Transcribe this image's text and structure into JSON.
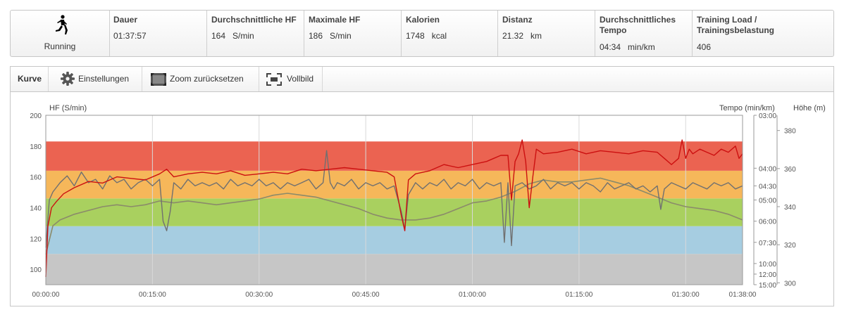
{
  "summary": {
    "sport": {
      "label": "Running",
      "icon": "runner-icon"
    },
    "cells": [
      {
        "title": "Dauer",
        "value": "01:37:57",
        "unit": ""
      },
      {
        "title": "Durchschnittliche HF",
        "value": "164",
        "unit": "S/min"
      },
      {
        "title": "Maximale HF",
        "value": "186",
        "unit": "S/min"
      },
      {
        "title": "Kalorien",
        "value": "1748",
        "unit": "kcal"
      },
      {
        "title": "Distanz",
        "value": "21.32",
        "unit": "km"
      },
      {
        "title": "Durchschnittliches Tempo",
        "value": "04:34",
        "unit": "min/km"
      },
      {
        "title": "Training Load / Trainingsbelastung",
        "value": "406",
        "unit": ""
      }
    ]
  },
  "toolbar": {
    "curve_label": "Kurve",
    "settings_label": "Einstellungen",
    "zoom_reset_label": "Zoom zurücksetzen",
    "fullscreen_label": "Vollbild"
  },
  "chart_data": {
    "type": "line",
    "y_left_title": "HF (S/min)",
    "y_right1_title": "Tempo (min/km)",
    "y_right2_title": "Höhe (m)",
    "x_ticks": [
      "00:00:00",
      "00:15:00",
      "00:30:00",
      "00:45:00",
      "01:00:00",
      "01:15:00",
      "01:30:00",
      "01:38:00"
    ],
    "x_range_minutes": [
      0,
      98
    ],
    "y_left_ticks": [
      100,
      120,
      140,
      160,
      180,
      200
    ],
    "y_left_range": [
      90,
      200
    ],
    "pace_ticks": [
      "03:00",
      "04:00",
      "04:30",
      "05:00",
      "06:00",
      "07:30",
      "10:00",
      "12:00",
      "15:00"
    ],
    "altitude_ticks": [
      300,
      320,
      340,
      360,
      380
    ],
    "altitude_range": [
      299,
      388
    ],
    "zones": [
      {
        "from": 90,
        "to": 110,
        "color": "#c6c6c6"
      },
      {
        "from": 110,
        "to": 128,
        "color": "#a6cde1"
      },
      {
        "from": 128,
        "to": 146,
        "color": "#a9d05f"
      },
      {
        "from": 146,
        "to": 164,
        "color": "#f6b75a"
      },
      {
        "from": 164,
        "to": 183,
        "color": "#eb6351"
      }
    ],
    "series": [
      {
        "name": "HF",
        "color": "#cc1010",
        "unit": "bpm",
        "x": [
          0,
          0.3,
          0.8,
          1.5,
          2.5,
          4,
          6,
          8,
          10,
          12,
          14,
          16,
          17,
          18,
          20,
          22,
          24,
          26,
          28,
          30,
          32,
          34,
          36,
          38,
          40,
          42,
          44,
          46,
          48,
          49,
          50,
          50.5,
          51,
          52,
          54,
          56,
          58,
          60,
          62,
          63,
          64,
          65,
          65.5,
          66,
          66.5,
          67,
          67.5,
          68,
          68.5,
          69,
          70,
          72,
          74,
          76,
          78,
          80,
          82,
          84,
          86,
          87,
          88,
          89,
          89.5,
          90,
          90.5,
          91,
          92,
          93,
          94,
          95,
          96,
          97,
          97.5,
          98
        ],
        "values": [
          95,
          128,
          140,
          144,
          149,
          153,
          157,
          156,
          160,
          159,
          158,
          162,
          165,
          160,
          162,
          163,
          162,
          164,
          161,
          162,
          163,
          162,
          165,
          164,
          165,
          166,
          165,
          164,
          163,
          160,
          135,
          125,
          158,
          162,
          164,
          168,
          166,
          168,
          170,
          172,
          174,
          174,
          145,
          170,
          175,
          184,
          170,
          140,
          160,
          178,
          175,
          176,
          178,
          175,
          177,
          176,
          175,
          177,
          176,
          172,
          168,
          172,
          184,
          172,
          178,
          175,
          178,
          176,
          174,
          178,
          176,
          180,
          172,
          175
        ]
      },
      {
        "name": "Tempo",
        "color": "#707070",
        "unit": "min/km",
        "x": [
          0,
          0.5,
          1,
          2,
          3,
          4,
          5,
          6,
          7,
          8,
          9,
          10,
          11,
          12,
          13,
          14,
          15,
          16,
          16.5,
          17,
          17.5,
          18,
          19,
          20,
          21,
          22,
          23,
          24,
          25,
          26,
          27,
          28,
          29,
          30,
          31,
          32,
          33,
          34,
          35,
          36,
          37,
          38,
          39,
          39.5,
          40,
          40.5,
          41,
          42,
          43,
          44,
          45,
          46,
          47,
          48,
          49,
          50,
          50.5,
          51,
          52,
          53,
          54,
          55,
          56,
          57,
          58,
          59,
          60,
          61,
          62,
          63,
          64,
          64.5,
          65,
          65.5,
          66,
          67,
          68,
          69,
          70,
          71,
          72,
          73,
          74,
          75,
          76,
          77,
          78,
          79,
          80,
          81,
          82,
          83,
          84,
          85,
          86,
          86.5,
          87,
          88,
          89,
          90,
          91,
          92,
          93,
          94,
          95,
          96,
          97,
          98
        ],
        "values": [
          8.0,
          5.0,
          4.7,
          4.4,
          4.2,
          4.5,
          4.1,
          4.4,
          4.3,
          4.6,
          4.2,
          4.4,
          4.3,
          4.6,
          4.4,
          4.3,
          4.5,
          4.3,
          6.0,
          6.6,
          5.5,
          4.4,
          4.6,
          4.3,
          4.5,
          4.4,
          4.5,
          4.4,
          4.6,
          4.3,
          4.5,
          4.4,
          4.5,
          4.3,
          4.5,
          4.4,
          4.6,
          4.4,
          4.5,
          4.4,
          4.3,
          4.6,
          4.4,
          3.6,
          4.4,
          4.6,
          4.4,
          4.5,
          4.3,
          4.6,
          4.4,
          4.5,
          4.4,
          4.6,
          4.5,
          5.5,
          6.5,
          4.8,
          4.4,
          4.6,
          4.4,
          4.5,
          4.3,
          4.6,
          4.4,
          4.5,
          4.3,
          4.6,
          4.4,
          4.5,
          4.4,
          7.5,
          4.4,
          7.8,
          4.5,
          4.4,
          4.6,
          4.5,
          4.3,
          4.6,
          4.4,
          4.5,
          4.4,
          4.6,
          4.4,
          4.5,
          4.7,
          4.4,
          4.6,
          4.5,
          4.4,
          4.6,
          4.5,
          4.7,
          4.5,
          5.4,
          4.6,
          4.4,
          4.5,
          4.6,
          4.4,
          4.5,
          4.6,
          4.4,
          4.5,
          4.4,
          4.6,
          4.5
        ]
      },
      {
        "name": "Höhe",
        "color": "#8b8b6a",
        "unit": "m",
        "x": [
          0,
          1,
          2,
          4,
          6,
          8,
          10,
          12,
          14,
          16,
          18,
          20,
          22,
          24,
          26,
          28,
          30,
          32,
          34,
          36,
          38,
          40,
          42,
          44,
          46,
          48,
          50,
          52,
          54,
          56,
          58,
          60,
          62,
          64,
          66,
          68,
          70,
          72,
          74,
          76,
          78,
          80,
          82,
          84,
          86,
          88,
          90,
          92,
          94,
          96,
          98
        ],
        "values": [
          315,
          330,
          333,
          336,
          338,
          340,
          341,
          340,
          341,
          343,
          342,
          343,
          342,
          341,
          342,
          343,
          344,
          346,
          347,
          346,
          345,
          343,
          341,
          339,
          336,
          334,
          333,
          333,
          334,
          336,
          339,
          342,
          343,
          345,
          348,
          352,
          354,
          353,
          353,
          354,
          355,
          353,
          351,
          348,
          345,
          342,
          340,
          339,
          338,
          336,
          333
        ]
      }
    ]
  }
}
